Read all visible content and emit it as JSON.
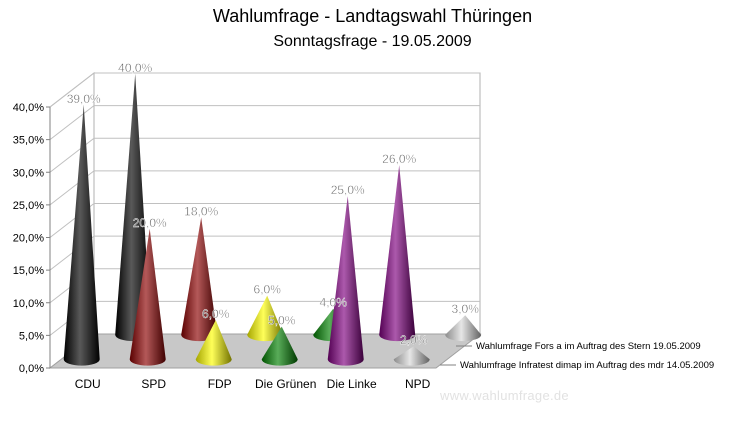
{
  "page": {
    "title": "Wahlumfrage - Landtagswahl Thüringen",
    "subtitle": "Sonntagsfrage - 19.05.2009",
    "watermark": "www.wahlumfrage.de"
  },
  "chart_data": {
    "type": "bar",
    "style": "3d-cone",
    "title": "Wahlumfrage - Landtagswahl Thüringen",
    "subtitle": "Sonntagsfrage - 19.05.2009",
    "categories": [
      "CDU",
      "SPD",
      "FDP",
      "Die Grünen",
      "Die Linke",
      "NPD"
    ],
    "category_colors": [
      "#000000",
      "#8b0000",
      "#ffff00",
      "#008000",
      "#800080",
      "#d8d8d8"
    ],
    "ylim": [
      0,
      40
    ],
    "y_ticks": [
      "0,0%",
      "5,0%",
      "10,0%",
      "15,0%",
      "20,0%",
      "25,0%",
      "30,0%",
      "35,0%",
      "40,0%"
    ],
    "grid": true,
    "legend_position": "bottom-right",
    "series": [
      {
        "name": "Wahlumfrage Infratest dimap im Auftrag des mdr 14.05.2009",
        "values": [
          39,
          20,
          6,
          5,
          25,
          2
        ],
        "labels": [
          "39,0%",
          "20,0%",
          "6,0%",
          "5,0%",
          "25,0%",
          "2,0%"
        ]
      },
      {
        "name": "Wahlumfrage Fors a im Auftrag des Stern 19.05.2009",
        "values": [
          40,
          18,
          6,
          4,
          26,
          3
        ],
        "labels": [
          "40,0%",
          "18,0%",
          "6,0%",
          "4,0%",
          "26,0%",
          "3,0%"
        ]
      }
    ]
  }
}
